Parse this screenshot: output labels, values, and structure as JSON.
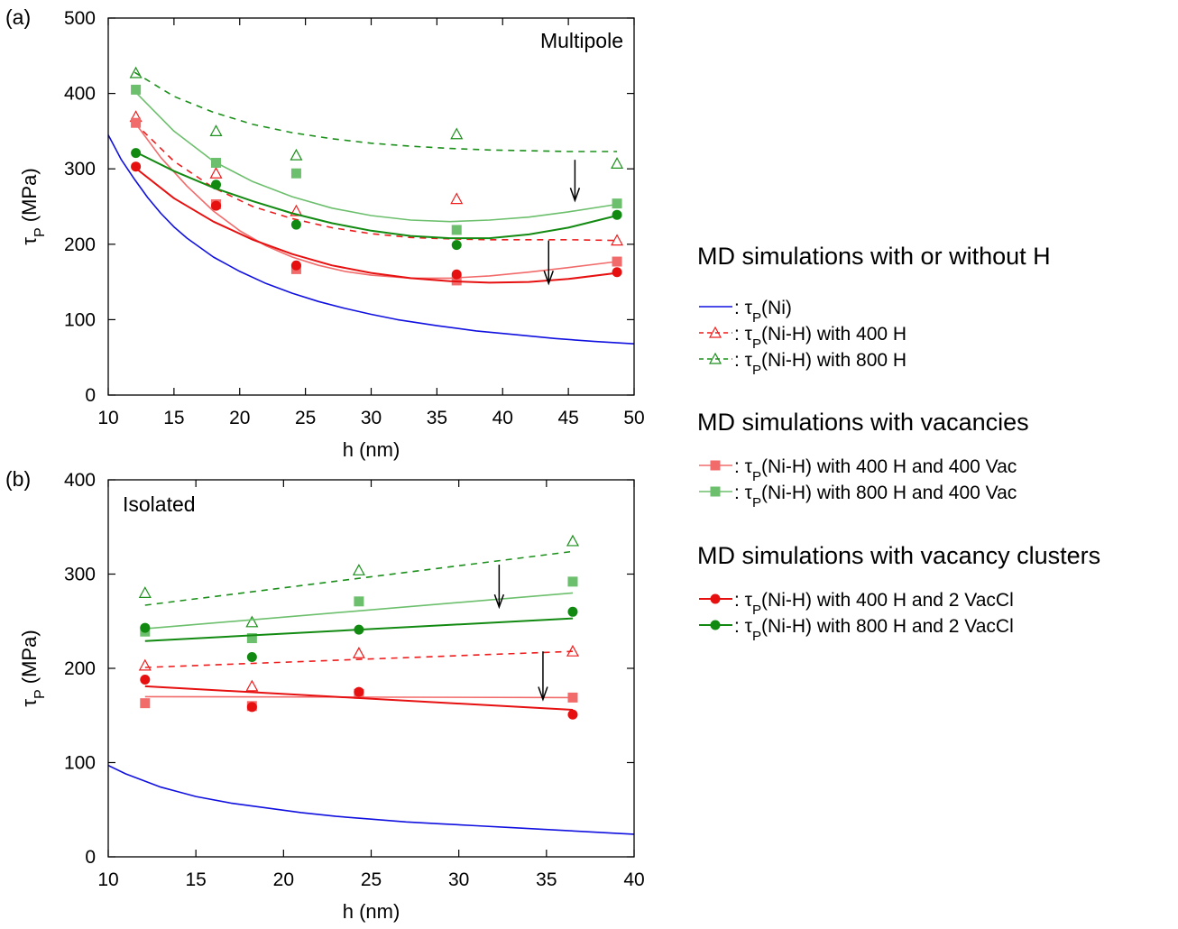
{
  "chart_data": [
    {
      "type": "line",
      "panel_label": "(a)",
      "corner_label": "Multipole",
      "xlabel": "h (nm)",
      "ylabel": "τ_P (MPa)",
      "xlim": [
        10,
        50
      ],
      "ylim": [
        0,
        500
      ],
      "xticks": [
        10,
        15,
        20,
        25,
        30,
        35,
        40,
        45,
        50
      ],
      "yticks": [
        0,
        100,
        200,
        300,
        400,
        500
      ],
      "arrows": [
        {
          "x": 45.5,
          "y1": 312,
          "y2": 258
        },
        {
          "x": 43.5,
          "y1": 205,
          "y2": 148
        }
      ],
      "series": [
        {
          "key": "ni",
          "x": [
            10,
            11,
            12,
            13,
            14,
            15,
            16,
            18,
            20,
            22,
            24,
            26,
            28,
            30,
            32,
            35,
            38,
            41,
            44,
            47,
            50
          ],
          "y": [
            345,
            312,
            286,
            262,
            241,
            223,
            208,
            183,
            164,
            148,
            135,
            124,
            115,
            107,
            100,
            92,
            85,
            80,
            75,
            71,
            68
          ]
        },
        {
          "key": "h400_pts",
          "x": [
            12.1,
            18.2,
            24.3,
            36.5,
            48.7
          ],
          "y": [
            369,
            294,
            244,
            260,
            205
          ]
        },
        {
          "key": "h400_fit",
          "x": [
            12,
            15,
            18,
            21,
            24,
            27,
            30,
            33,
            36,
            39,
            42,
            45,
            48.7
          ],
          "y": [
            361,
            310,
            275,
            250,
            234,
            222,
            214,
            209,
            207,
            206,
            206,
            206,
            205
          ]
        },
        {
          "key": "h800_pts",
          "x": [
            12.1,
            18.2,
            24.3,
            36.5,
            48.7
          ],
          "y": [
            427,
            350,
            318,
            346,
            307
          ]
        },
        {
          "key": "h800_fit",
          "x": [
            12,
            15,
            18,
            21,
            24,
            27,
            30,
            33,
            36,
            39,
            42,
            45,
            48.7
          ],
          "y": [
            428,
            396,
            375,
            359,
            348,
            340,
            334,
            330,
            327,
            325,
            324,
            323,
            323
          ]
        },
        {
          "key": "vac400_pts",
          "x": [
            12.1,
            18.2,
            24.3,
            36.5,
            48.7
          ],
          "y": [
            361,
            253,
            167,
            152,
            177
          ]
        },
        {
          "key": "vac400_fit",
          "x": [
            12,
            14,
            16,
            18,
            20,
            22,
            24,
            26,
            28,
            30,
            33,
            36,
            39,
            42,
            45,
            48.7
          ],
          "y": [
            362,
            315,
            277,
            244,
            218,
            198,
            183,
            172,
            164,
            159,
            155,
            155,
            158,
            163,
            169,
            177
          ]
        },
        {
          "key": "vac800_pts",
          "x": [
            12.1,
            18.2,
            24.3,
            36.5,
            48.7
          ],
          "y": [
            405,
            308,
            294,
            219,
            254
          ]
        },
        {
          "key": "vac800_fit",
          "x": [
            12,
            15,
            18,
            21,
            24,
            27,
            30,
            33,
            36,
            39,
            42,
            45,
            48.7
          ],
          "y": [
            403,
            350,
            310,
            283,
            263,
            248,
            238,
            232,
            230,
            232,
            236,
            243,
            253
          ]
        },
        {
          "key": "cl400_pts",
          "x": [
            12.1,
            18.2,
            24.3,
            36.5,
            48.7
          ],
          "y": [
            303,
            251,
            172,
            160,
            163
          ]
        },
        {
          "key": "cl400_fit",
          "x": [
            12,
            15,
            18,
            21,
            24,
            27,
            30,
            33,
            36,
            39,
            42,
            45,
            48.7
          ],
          "y": [
            302,
            261,
            230,
            206,
            187,
            172,
            162,
            155,
            151,
            149,
            150,
            154,
            162
          ]
        },
        {
          "key": "cl800_pts",
          "x": [
            12.1,
            18.2,
            24.3,
            36.5,
            48.7
          ],
          "y": [
            321,
            279,
            226,
            199,
            239
          ]
        },
        {
          "key": "cl800_fit",
          "x": [
            12,
            15,
            18,
            21,
            24,
            27,
            30,
            33,
            36,
            39,
            42,
            45,
            48.7
          ],
          "y": [
            323,
            297,
            275,
            257,
            241,
            228,
            218,
            211,
            208,
            208,
            213,
            222,
            238
          ]
        }
      ]
    },
    {
      "type": "line",
      "panel_label": "(b)",
      "corner_label": "Isolated",
      "xlabel": "h (nm)",
      "ylabel": "τ_P (MPa)",
      "xlim": [
        10,
        40
      ],
      "ylim": [
        0,
        400
      ],
      "xticks": [
        10,
        15,
        20,
        25,
        30,
        35,
        40
      ],
      "yticks": [
        0,
        100,
        200,
        300,
        400
      ],
      "arrows": [
        {
          "x": 32.3,
          "y1": 310,
          "y2": 265
        },
        {
          "x": 34.8,
          "y1": 218,
          "y2": 167
        }
      ],
      "series": [
        {
          "key": "ni",
          "x": [
            10,
            11,
            12,
            13,
            14,
            15,
            17,
            19,
            21,
            23,
            25,
            27,
            29,
            31,
            33,
            35,
            37,
            39,
            40
          ],
          "y": [
            97,
            88,
            81,
            74,
            69,
            64,
            57,
            52,
            47,
            43,
            40,
            37,
            35,
            33,
            31,
            29,
            27,
            25,
            24
          ]
        },
        {
          "key": "h400_pts",
          "x": [
            12.1,
            18.2,
            24.3,
            36.5
          ],
          "y": [
            203,
            181,
            216,
            218
          ]
        },
        {
          "key": "h400_fit",
          "x": [
            12.1,
            36.5
          ],
          "y": [
            201,
            218
          ]
        },
        {
          "key": "h800_pts",
          "x": [
            12.1,
            18.2,
            24.3,
            36.5
          ],
          "y": [
            280,
            249,
            304,
            335
          ]
        },
        {
          "key": "h800_fit",
          "x": [
            12.1,
            36.5
          ],
          "y": [
            267,
            324
          ]
        },
        {
          "key": "vac400_pts",
          "x": [
            12.1,
            18.2,
            24.3,
            36.5
          ],
          "y": [
            163,
            160,
            173,
            169
          ]
        },
        {
          "key": "vac400_fit",
          "x": [
            12.1,
            36.5
          ],
          "y": [
            170,
            169
          ]
        },
        {
          "key": "vac800_pts",
          "x": [
            12.1,
            18.2,
            24.3,
            36.5
          ],
          "y": [
            239,
            232,
            271,
            292
          ]
        },
        {
          "key": "vac800_fit",
          "x": [
            12.1,
            36.5
          ],
          "y": [
            242,
            280
          ]
        },
        {
          "key": "cl400_pts",
          "x": [
            12.1,
            18.2,
            24.3,
            36.5
          ],
          "y": [
            188,
            159,
            175,
            151
          ]
        },
        {
          "key": "cl400_fit",
          "x": [
            12.1,
            36.5
          ],
          "y": [
            181,
            156
          ]
        },
        {
          "key": "cl800_pts",
          "x": [
            12.1,
            18.2,
            24.3,
            36.5
          ],
          "y": [
            243,
            212,
            241,
            260
          ]
        },
        {
          "key": "cl800_fit",
          "x": [
            12.1,
            36.5
          ],
          "y": [
            229,
            253
          ]
        }
      ]
    }
  ],
  "legend": {
    "sections": [
      {
        "title": "MD simulations with or without H",
        "entries": [
          {
            "key": "ni",
            "label": ": τ_P(Ni)"
          },
          {
            "key": "h400",
            "label": ": τ_P(Ni-H) with 400 H"
          },
          {
            "key": "h800",
            "label": ": τ_P(Ni-H) with 800 H"
          }
        ]
      },
      {
        "title": "MD simulations with vacancies",
        "entries": [
          {
            "key": "vac400",
            "label": ": τ_P(Ni-H) with 400 H and 400 Vac"
          },
          {
            "key": "vac800",
            "label": ": τ_P(Ni-H) with 800 H and 400 Vac"
          }
        ]
      },
      {
        "title": "MD simulations with vacancy clusters",
        "entries": [
          {
            "key": "cl400",
            "label": ": τ_P(Ni-H) with 400 H and 2 VacCl"
          },
          {
            "key": "cl800",
            "label": ": τ_P(Ni-H) with 800 H and 2 VacCl"
          }
        ]
      }
    ]
  },
  "colors": {
    "ni": "#1010e0",
    "h400": "#ee1c1c",
    "h800": "#1a8f1a",
    "vac400": "#f26b6b",
    "vac800": "#6cbf6c",
    "cl400": "#e61010",
    "cl800": "#128a12"
  }
}
